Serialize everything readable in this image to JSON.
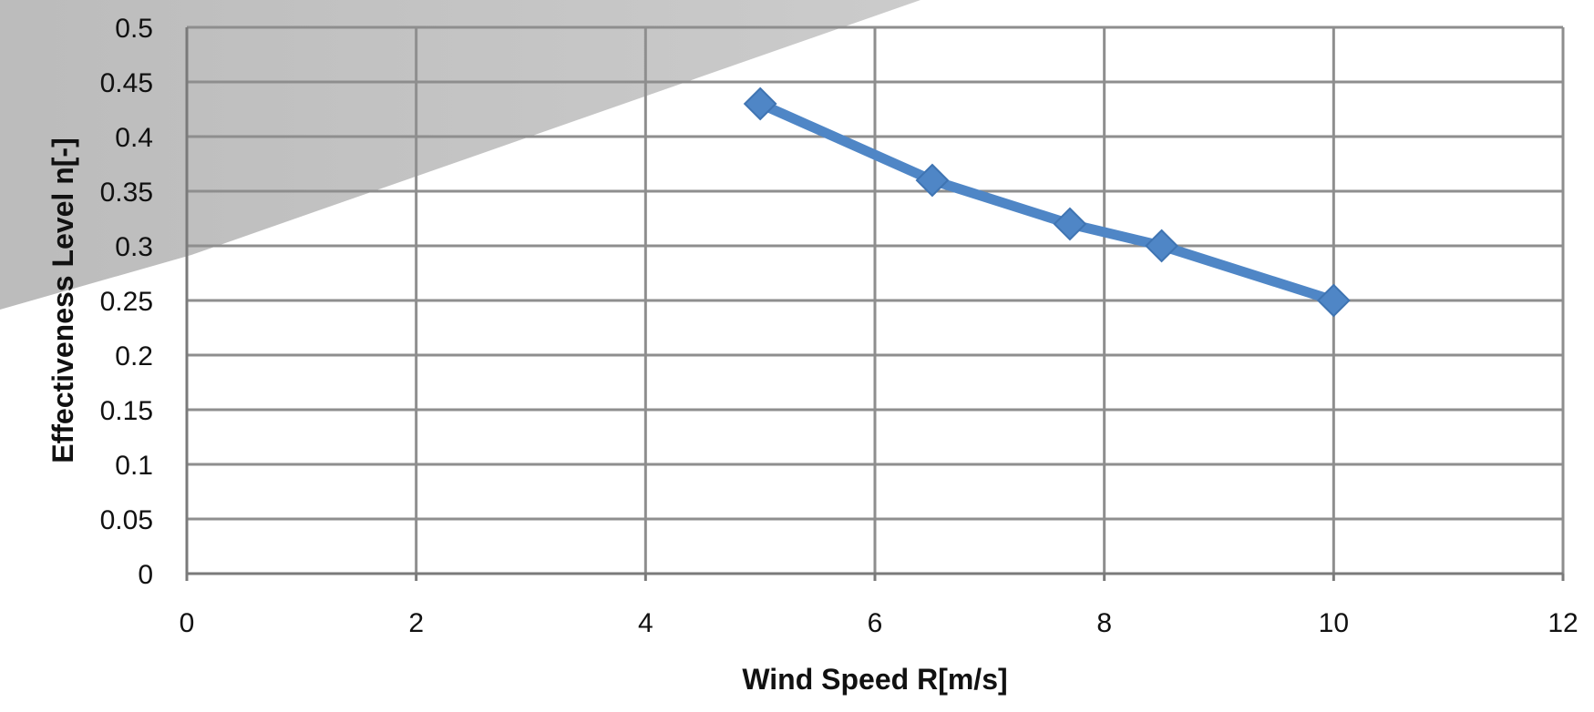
{
  "chart_data": {
    "type": "line",
    "title": "",
    "xlabel": "Wind Speed R[m/s]",
    "ylabel": "Effectiveness Level n[-]",
    "xlim": [
      0,
      12
    ],
    "ylim": [
      0,
      0.5
    ],
    "xticks": [
      "0",
      "2",
      "4",
      "6",
      "8",
      "10",
      "12"
    ],
    "yticks": [
      "0",
      "0.05",
      "0.1",
      "0.15",
      "0.2",
      "0.25",
      "0.3",
      "0.35",
      "0.4",
      "0.45",
      "0.5"
    ],
    "grid": true,
    "legend": "none",
    "series": [
      {
        "x": [
          5,
          6.5,
          7.7,
          8.5,
          10
        ],
        "y": [
          0.43,
          0.36,
          0.32,
          0.3,
          0.25
        ],
        "marker": "diamond",
        "color": "#4f86c6"
      }
    ]
  }
}
